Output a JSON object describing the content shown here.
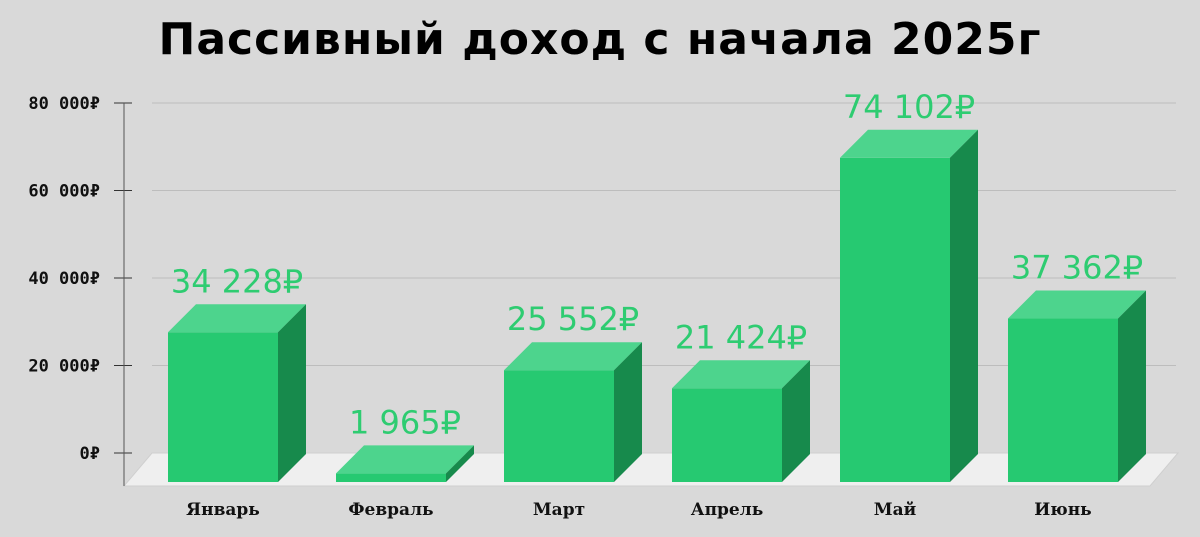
{
  "chart_data": {
    "type": "bar",
    "title": "Пассивный доход с начала 2025г",
    "xlabel": "",
    "ylabel": "",
    "categories": [
      "Январь",
      "Февраль",
      "Март",
      "Апрель",
      "Май",
      "Июнь"
    ],
    "values": [
      34228,
      1965,
      25552,
      21424,
      74102,
      37362
    ],
    "data_labels": [
      "34 228₽",
      "1 965₽",
      "25 552₽",
      "21 424₽",
      "74 102₽",
      "37 362₽"
    ],
    "y_ticks": [
      0,
      20000,
      40000,
      60000,
      80000
    ],
    "y_tick_labels": [
      "0₽",
      "20 000₽",
      "40 000₽",
      "60 000₽",
      "80 000₽"
    ],
    "ylim": [
      0,
      80000
    ],
    "grid": true,
    "legend": "none",
    "style": "3d",
    "colors": {
      "bar_front": "#26c971",
      "bar_top": "#4dd48d",
      "bar_side": "#178a4c",
      "data_label": "#2ecc71",
      "floor": "#efefef",
      "gridline": "#bdbdbd",
      "background": "#d9d9d9"
    }
  }
}
